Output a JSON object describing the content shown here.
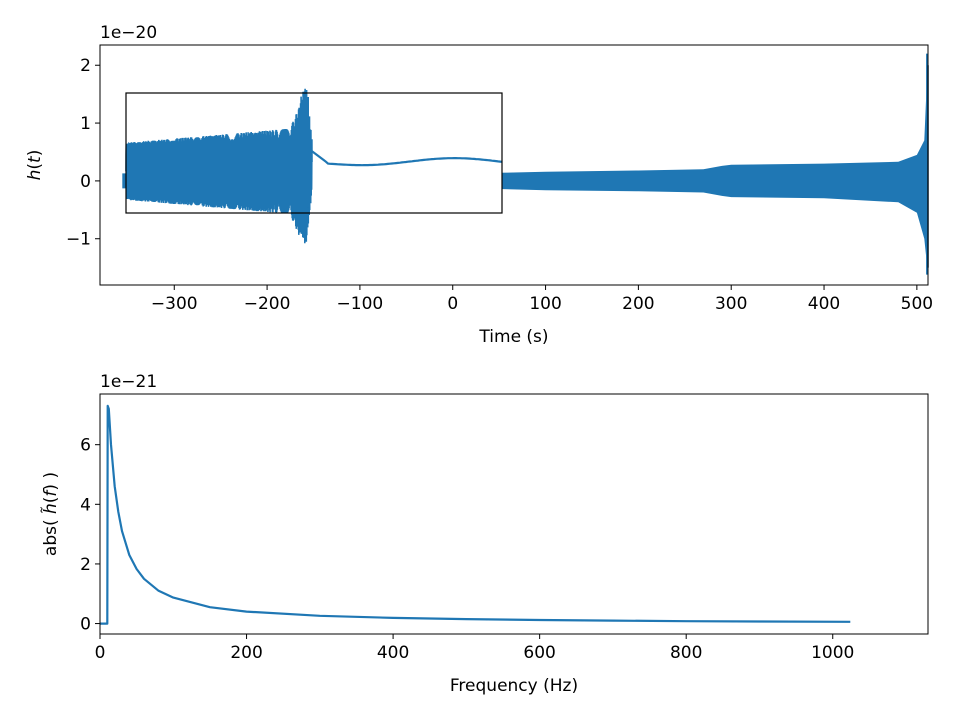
{
  "colors": {
    "series": "#1f77b4",
    "axes": "#000000",
    "background": "#ffffff"
  },
  "chart_data": [
    {
      "type": "line",
      "xlabel": "Time (s)",
      "ylabel": "h(t)",
      "offset_text": "1e−20",
      "xlim": [
        -380,
        512
      ],
      "ylim": [
        -1.8,
        2.35
      ],
      "x_ticks": [
        -300,
        -200,
        -100,
        0,
        100,
        200,
        300,
        400,
        500
      ],
      "x_tick_labels": [
        "−300",
        "−200",
        "−100",
        "0",
        "100",
        "200",
        "300",
        "400",
        "500"
      ],
      "y_ticks": [
        -1,
        0,
        1,
        2
      ],
      "y_tick_labels": [
        "−1",
        "0",
        "1",
        "2"
      ],
      "series_envelope": {
        "x": [
          -356,
          50,
          100,
          200,
          270,
          290,
          300,
          400,
          480,
          500,
          508,
          512
        ],
        "y_max": [
          0.13,
          0.14,
          0.16,
          0.18,
          0.2,
          0.26,
          0.28,
          0.3,
          0.33,
          0.45,
          0.7,
          2.2
        ],
        "y_min": [
          -0.13,
          -0.14,
          -0.16,
          -0.18,
          -0.2,
          -0.26,
          -0.28,
          -0.3,
          -0.37,
          -0.55,
          -1.0,
          -1.62
        ]
      },
      "inset": {
        "description_hidden": true,
        "box": true,
        "y_range_units": [
          -0.58,
          1.52
        ]
      },
      "grid": false
    },
    {
      "type": "line",
      "xlabel": "Frequency (Hz)",
      "ylabel": "abs( h̃(f) )",
      "offset_text": "1e−21",
      "xlim": [
        0,
        1130
      ],
      "ylim": [
        -0.35,
        7.7
      ],
      "x_ticks": [
        0,
        200,
        400,
        600,
        800,
        1000
      ],
      "x_tick_labels": [
        "0",
        "200",
        "400",
        "600",
        "800",
        "1000"
      ],
      "y_ticks": [
        0,
        2,
        4,
        6
      ],
      "y_tick_labels": [
        "0",
        "2",
        "4",
        "6"
      ],
      "series": [
        {
          "x": [
            0,
            10,
            10.5,
            12,
            15,
            20,
            25,
            30,
            40,
            50,
            60,
            80,
            100,
            150,
            200,
            300,
            400,
            500,
            600,
            700,
            800,
            900,
            1024
          ],
          "values": [
            0,
            0,
            7.3,
            7.2,
            6.0,
            4.6,
            3.75,
            3.1,
            2.3,
            1.83,
            1.5,
            1.1,
            0.87,
            0.55,
            0.4,
            0.26,
            0.19,
            0.15,
            0.12,
            0.1,
            0.08,
            0.07,
            0.06
          ]
        }
      ],
      "grid": false
    }
  ]
}
